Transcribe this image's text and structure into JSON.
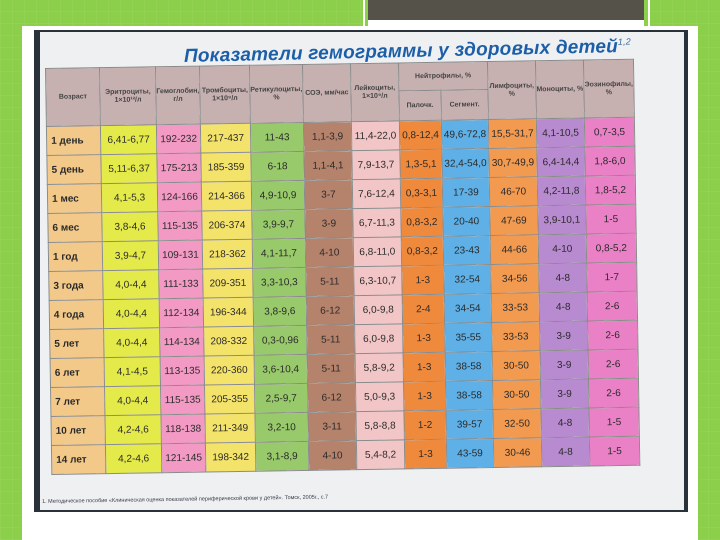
{
  "slide": {
    "title": "Показатели гемограммы у здоровых детей",
    "title_sup": "1,2"
  },
  "table": {
    "headers": {
      "age": "Возраст",
      "erythrocytes": "Эритроциты, 1×10¹²/л",
      "hemoglobin": "Гемоглобин, г/л",
      "platelets": "Тромбоциты, 1×10⁹/л",
      "reticulocytes": "Ретикулоциты, %",
      "esr": "СОЭ, мм/час",
      "leukocytes": "Лейкоциты, 1×10⁹/л",
      "neutrophils": "Нейтрофилы, %",
      "neutrophils_band": "Палочк.",
      "neutrophils_seg": "Сегмент.",
      "lymphocytes": "Лимфоциты, %",
      "monocytes": "Моноциты, %",
      "eosinophils": "Эозинофилы, %"
    },
    "colors": {
      "age": "#f3c98a",
      "erythrocytes": "#e4ea4a",
      "hemoglobin": "#f29ac4",
      "platelets": "#f4e36a",
      "reticulocytes": "#98c96b",
      "esr": "#b5826b",
      "leukocytes": "#f2c6c6",
      "neutrophils_band": "#ef8a3c",
      "neutrophils_seg": "#5fb0e6",
      "lymphocytes": "#f29a50",
      "monocytes": "#b88ad0",
      "eosinophils": "#ea80c6"
    },
    "rows": [
      {
        "age": "1 день",
        "ery": "6,41-6,77",
        "hb": "192-232",
        "plt": "217-437",
        "ret": "11-43",
        "esr": "1,1-3,9",
        "leu": "11,4-22,0",
        "band": "0,8-12,4",
        "seg": "49,6-72,8",
        "lym": "15,5-31,7",
        "mono": "4,1-10,5",
        "eos": "0,7-3,5"
      },
      {
        "age": "5 день",
        "ery": "5,11-6,37",
        "hb": "175-213",
        "plt": "185-359",
        "ret": "6-18",
        "esr": "1,1-4,1",
        "leu": "7,9-13,7",
        "band": "1,3-5,1",
        "seg": "32,4-54,0",
        "lym": "30,7-49,9",
        "mono": "6,4-14,4",
        "eos": "1,8-6,0"
      },
      {
        "age": "1 мес",
        "ery": "4,1-5,3",
        "hb": "124-166",
        "plt": "214-366",
        "ret": "4,9-10,9",
        "esr": "3-7",
        "leu": "7,6-12,4",
        "band": "0,3-3,1",
        "seg": "17-39",
        "lym": "46-70",
        "mono": "4,2-11,8",
        "eos": "1,8-5,2"
      },
      {
        "age": "6 мес",
        "ery": "3,8-4,6",
        "hb": "115-135",
        "plt": "206-374",
        "ret": "3,9-9,7",
        "esr": "3-9",
        "leu": "6,7-11,3",
        "band": "0,8-3,2",
        "seg": "20-40",
        "lym": "47-69",
        "mono": "3,9-10,1",
        "eos": "1-5"
      },
      {
        "age": "1 год",
        "ery": "3,9-4,7",
        "hb": "109-131",
        "plt": "218-362",
        "ret": "4,1-11,7",
        "esr": "4-10",
        "leu": "6,8-11,0",
        "band": "0,8-3,2",
        "seg": "23-43",
        "lym": "44-66",
        "mono": "4-10",
        "eos": "0,8-5,2"
      },
      {
        "age": "3 года",
        "ery": "4,0-4,4",
        "hb": "111-133",
        "plt": "209-351",
        "ret": "3,3-10,3",
        "esr": "5-11",
        "leu": "6,3-10,7",
        "band": "1-3",
        "seg": "32-54",
        "lym": "34-56",
        "mono": "4-8",
        "eos": "1-7"
      },
      {
        "age": "4 года",
        "ery": "4,0-4,4",
        "hb": "112-134",
        "plt": "196-344",
        "ret": "3,8-9,6",
        "esr": "6-12",
        "leu": "6,0-9,8",
        "band": "2-4",
        "seg": "34-54",
        "lym": "33-53",
        "mono": "4-8",
        "eos": "2-6"
      },
      {
        "age": "5 лет",
        "ery": "4,0-4,4",
        "hb": "114-134",
        "plt": "208-332",
        "ret": "0,3-0,96",
        "esr": "5-11",
        "leu": "6,0-9,8",
        "band": "1-3",
        "seg": "35-55",
        "lym": "33-53",
        "mono": "3-9",
        "eos": "2-6"
      },
      {
        "age": "6 лет",
        "ery": "4,1-4,5",
        "hb": "113-135",
        "plt": "220-360",
        "ret": "3,6-10,4",
        "esr": "5-11",
        "leu": "5,8-9,2",
        "band": "1-3",
        "seg": "38-58",
        "lym": "30-50",
        "mono": "3-9",
        "eos": "2-6"
      },
      {
        "age": "7 лет",
        "ery": "4,0-4,4",
        "hb": "115-135",
        "plt": "205-355",
        "ret": "2,5-9,7",
        "esr": "6-12",
        "leu": "5,0-9,3",
        "band": "1-3",
        "seg": "38-58",
        "lym": "30-50",
        "mono": "3-9",
        "eos": "2-6"
      },
      {
        "age": "10 лет",
        "ery": "4,2-4,6",
        "hb": "118-138",
        "plt": "211-349",
        "ret": "3,2-10",
        "esr": "3-11",
        "leu": "5,8-8,8",
        "band": "1-2",
        "seg": "39-57",
        "lym": "32-50",
        "mono": "4-8",
        "eos": "1-5"
      },
      {
        "age": "14 лет",
        "ery": "4,2-4,6",
        "hb": "121-145",
        "plt": "198-342",
        "ret": "3,1-8,9",
        "esr": "4-10",
        "leu": "5,4-8,2",
        "band": "1-3",
        "seg": "43-59",
        "lym": "30-46",
        "mono": "4-8",
        "eos": "1-5"
      }
    ]
  },
  "footnote": "1. Методическое пособие «Клиническая оценка показателей периферической крови у детей». Томск, 2005г., с.7"
}
